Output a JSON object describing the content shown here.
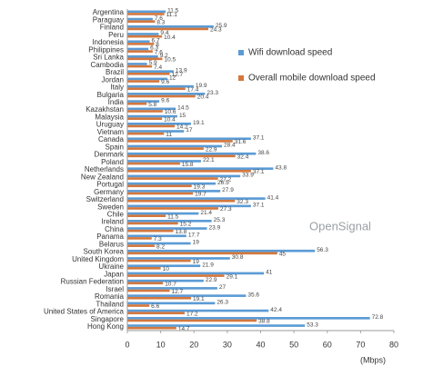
{
  "chart_data": {
    "type": "hbar",
    "categories": [
      "Argentina",
      "Paraguay",
      "Finland",
      "Peru",
      "Indonesia",
      "Philippines",
      "Sri Lanka",
      "Cambodia",
      "Brazil",
      "Jordan",
      "Italy",
      "Bulgaria",
      "India",
      "Kazakhstan",
      "Malaysia",
      "Uruguay",
      "Vietnam",
      "Canada",
      "Spain",
      "Denmark",
      "Poland",
      "Netherlands",
      "New Zealand",
      "Portugal",
      "Germany",
      "Switzerland",
      "Sweden",
      "Chile",
      "Ireland",
      "China",
      "Panama",
      "Belarus",
      "South Korea",
      "United Kingdom",
      "Ukraine",
      "Japan",
      "Russian Federation",
      "Israel",
      "Romania",
      "Thailand",
      "United States of America",
      "Singapore",
      "Hong Kong"
    ],
    "series": [
      {
        "name": "Wifi download speed",
        "color": "#5b9bd5",
        "values": [
          11.5,
          7.6,
          25.9,
          9.4,
          6.7,
          6.3,
          9.2,
          5.9,
          13.9,
          12.0,
          19.9,
          23.3,
          9.6,
          14.5,
          15.0,
          19.1,
          17.0,
          37.1,
          28.4,
          38.6,
          22.1,
          43.8,
          33.9,
          26.5,
          27.9,
          41.4,
          37.1,
          21.4,
          25.3,
          23.9,
          17.7,
          19.0,
          56.3,
          30.8,
          21.9,
          41.0,
          22.9,
          27.0,
          35.6,
          26.3,
          42.4,
          72.8,
          53.3
        ]
      },
      {
        "name": "Overall mobile download speed",
        "color": "#d4773d",
        "values": [
          11.1,
          8.3,
          24.3,
          10.4,
          8.0,
          7.6,
          10.5,
          7.4,
          12.7,
          9.6,
          17.4,
          20.4,
          5.8,
          10.6,
          10.4,
          14.2,
          11.0,
          31.6,
          22.9,
          32.4,
          15.8,
          37.1,
          27.2,
          19.3,
          19.7,
          32.3,
          27.3,
          11.5,
          15.2,
          13.8,
          7.3,
          8.2,
          45.0,
          19.0,
          10.0,
          29.1,
          10.7,
          12.7,
          19.1,
          6.6,
          17.2,
          38.8,
          14.7
        ]
      }
    ],
    "xlim": [
      0,
      80
    ],
    "xticks": [
      0,
      10,
      20,
      30,
      40,
      50,
      60,
      70,
      80
    ],
    "x_label": "(Mbps)",
    "watermark": "OpenSignal",
    "grid": false,
    "legend": "right"
  }
}
